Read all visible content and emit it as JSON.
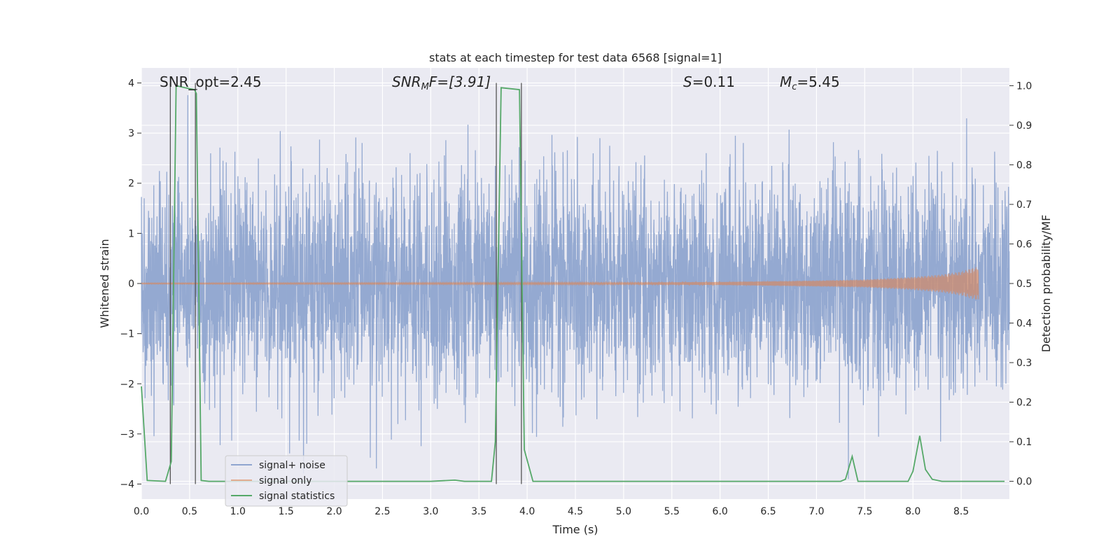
{
  "chart_data": {
    "type": "line",
    "title": "stats at each timestep for test data 6568 [signal=1]",
    "xlabel": "Time (s)",
    "ylabel": "Whitened strain",
    "y2label": "Detection probability/MF",
    "xlim": [
      0,
      9
    ],
    "ylim": [
      -4.3,
      4.3
    ],
    "y2lim": [
      -0.045,
      1.045
    ],
    "xticks": [
      "0.0",
      "0.5",
      "1.0",
      "1.5",
      "2.0",
      "2.5",
      "3.0",
      "3.5",
      "4.0",
      "4.5",
      "5.0",
      "5.5",
      "6.0",
      "6.5",
      "7.0",
      "7.5",
      "8.0",
      "8.5"
    ],
    "yticks": [
      "4",
      "3",
      "2",
      "1",
      "0",
      "−1",
      "−2",
      "−3",
      "−4"
    ],
    "y2ticks": [
      "1.0",
      "0.9",
      "0.8",
      "0.7",
      "0.6",
      "0.5",
      "0.4",
      "0.3",
      "0.2",
      "0.1",
      "0.0"
    ],
    "grid": true,
    "legend_position": "lower-left",
    "annotations": {
      "snr_opt": "SNR_opt=2.45",
      "snr_mf_prefix": "SNR",
      "snr_mf_sub": "M",
      "snr_mf_rest": "F=[3.91]",
      "s_prefix": "S",
      "s_rest": "=0.11",
      "mc_prefix": "M",
      "mc_sub": "c",
      "mc_rest": "=5.45"
    },
    "vertical_lines_x": [
      0.3,
      0.56,
      3.68,
      3.94
    ],
    "series": [
      {
        "name": "signal+ noise",
        "color": "#8fa5cf",
        "description_kind": "noise",
        "x_range": [
          0,
          9
        ],
        "amplitude_typical": 1.6,
        "amplitude_max": 3.9
      },
      {
        "name": "signal only",
        "color": "#dd8452",
        "x_range": [
          0,
          8.68
        ],
        "envelope": [
          [
            0,
            0.01
          ],
          [
            5,
            0.02
          ],
          [
            6,
            0.03
          ],
          [
            7,
            0.06
          ],
          [
            7.5,
            0.08
          ],
          [
            8,
            0.13
          ],
          [
            8.3,
            0.18
          ],
          [
            8.5,
            0.24
          ],
          [
            8.6,
            0.3
          ],
          [
            8.68,
            0.34
          ]
        ]
      },
      {
        "name": "signal statistics",
        "color": "#55a868",
        "axis": "right",
        "x": [
          0.0,
          0.06,
          0.25,
          0.31,
          0.36,
          0.45,
          0.55,
          0.57,
          0.62,
          0.7,
          1.0,
          2.0,
          3.0,
          3.25,
          3.35,
          3.63,
          3.67,
          3.73,
          3.92,
          3.97,
          4.06,
          4.5,
          5.0,
          6.0,
          7.0,
          7.25,
          7.3,
          7.37,
          7.43,
          7.6,
          7.95,
          8.0,
          8.07,
          8.13,
          8.2,
          8.3,
          8.5,
          8.95
        ],
        "y": [
          0.24,
          0.002,
          0.0,
          0.05,
          1.0,
          0.995,
          0.99,
          0.98,
          0.002,
          0.0,
          0.0,
          0.0,
          0.0,
          0.003,
          0.0,
          0.0,
          0.1,
          0.995,
          0.99,
          0.08,
          0.0,
          0.0,
          0.0,
          0.0,
          0.0,
          0.0,
          0.005,
          0.063,
          0.0,
          0.0,
          0.0,
          0.025,
          0.115,
          0.03,
          0.005,
          0.0,
          0.0,
          0.0
        ]
      }
    ]
  }
}
